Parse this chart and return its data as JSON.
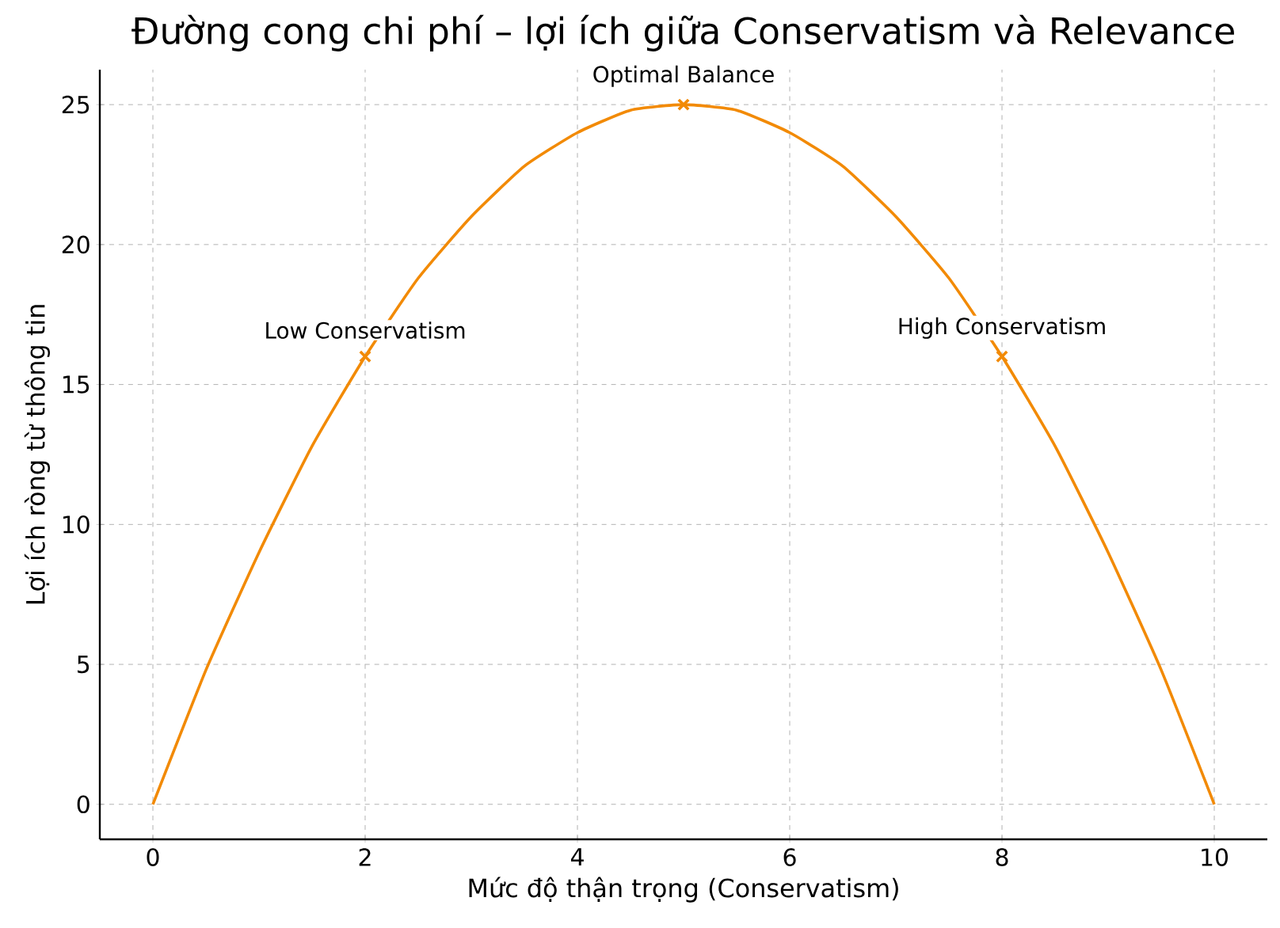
{
  "chart_data": {
    "type": "line",
    "title": "Đường cong chi phí – lợi ích giữa Conservatism và Relevance",
    "xlabel": "Mức độ thận trọng (Conservatism)",
    "ylabel": "Lợi ích ròng từ thông tin",
    "xlim": [
      -0.5,
      10.5
    ],
    "ylim": [
      -1.25,
      26.25
    ],
    "xticks": [
      0,
      2,
      4,
      6,
      8,
      10
    ],
    "yticks": [
      0,
      5,
      10,
      15,
      20,
      25
    ],
    "grid": true,
    "line_style": "solid",
    "series": [
      {
        "color": "#f28a05",
        "marker": "none",
        "x": [
          0,
          0.5,
          1,
          1.5,
          2,
          2.5,
          3,
          3.5,
          4,
          4.5,
          5,
          5.5,
          6,
          6.5,
          7,
          7.5,
          8,
          8.5,
          9,
          9.5,
          10
        ],
        "values": [
          0,
          4.8,
          9,
          12.8,
          16,
          18.8,
          21,
          22.8,
          24,
          24.8,
          25,
          24.8,
          24,
          22.8,
          21,
          18.8,
          16,
          12.8,
          9,
          4.8,
          0
        ]
      },
      {
        "type": "scatter",
        "color": "#f28a05",
        "marker": "cross",
        "x": [
          2,
          5,
          8
        ],
        "values": [
          16,
          25,
          16
        ]
      }
    ],
    "annotations": [
      {
        "text": "Low Conservatism",
        "x": 2,
        "y": 16
      },
      {
        "text": "Optimal Balance",
        "x": 5,
        "y": 25
      },
      {
        "text": "High Conservatism",
        "x": 8,
        "y": 16
      }
    ]
  }
}
